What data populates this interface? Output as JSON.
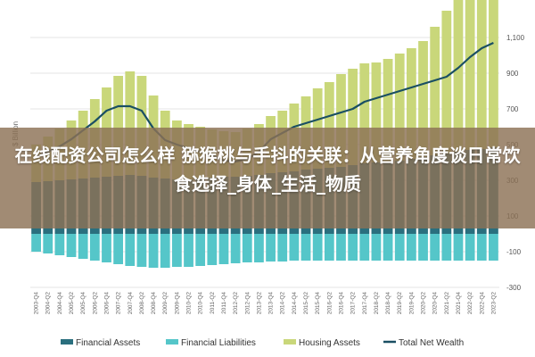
{
  "overlay": {
    "title": "在线配资公司怎么样 猕猴桃与手抖的关联：从营养角度谈日常饮食选择_身体_生活_物质"
  },
  "chart_data": {
    "type": "bar",
    "ylabel": "$ Billion",
    "ylim": [
      -300,
      1200
    ],
    "yticks": [
      -300,
      -100,
      100,
      300,
      500,
      700,
      900,
      1100
    ],
    "ytick_labels": [
      "-300",
      "-100",
      "100",
      "300",
      "500",
      "700",
      "900",
      "1,100"
    ],
    "grid": true,
    "legend_position": "bottom",
    "x_labels": [
      "2003-Q4",
      "2004-Q2",
      "2004-Q4",
      "2005-Q2",
      "2005-Q4",
      "2006-Q2",
      "2006-Q4",
      "2007-Q2",
      "2007-Q4",
      "2008-Q2",
      "2008-Q4",
      "2009-Q2",
      "2009-Q4",
      "2010-Q2",
      "2010-Q4",
      "2011-Q2",
      "2011-Q4",
      "2012-Q2",
      "2012-Q4",
      "2013-Q2",
      "2013-Q4",
      "2014-Q2",
      "2014-Q4",
      "2015-Q2",
      "2015-Q4",
      "2016-Q2",
      "2016-Q4",
      "2017-Q2",
      "2017-Q4",
      "2018-Q2",
      "2018-Q4",
      "2019-Q2",
      "2019-Q4",
      "2020-Q2",
      "2020-Q4",
      "2021-Q2",
      "2021-Q4",
      "2022-Q2",
      "2022-Q4",
      "2023-Q2"
    ],
    "series": [
      {
        "name": "Financial Assets",
        "color": "#2a6f7e",
        "values": [
          290,
          295,
          300,
          305,
          310,
          315,
          320,
          325,
          330,
          325,
          315,
          310,
          305,
          305,
          310,
          315,
          320,
          320,
          325,
          330,
          340,
          345,
          350,
          360,
          365,
          370,
          375,
          385,
          395,
          400,
          405,
          410,
          420,
          430,
          440,
          450,
          460,
          470,
          475,
          485
        ]
      },
      {
        "name": "Financial Liabilities",
        "color": "#55c6c9",
        "values": [
          -100,
          -110,
          -120,
          -130,
          -140,
          -150,
          -160,
          -170,
          -180,
          -185,
          -190,
          -190,
          -185,
          -185,
          -180,
          -175,
          -170,
          -165,
          -160,
          -160,
          -155,
          -155,
          -150,
          -150,
          -150,
          -150,
          -150,
          -150,
          -150,
          -150,
          -150,
          -150,
          -150,
          -150,
          -150,
          -150,
          -150,
          -150,
          -150,
          -150
        ]
      },
      {
        "name": "Housing Assets",
        "color": "#c9d77a",
        "values": [
          210,
          250,
          290,
          330,
          380,
          440,
          500,
          560,
          580,
          560,
          460,
          380,
          330,
          310,
          290,
          270,
          255,
          250,
          265,
          285,
          320,
          345,
          380,
          410,
          450,
          480,
          520,
          540,
          560,
          560,
          575,
          600,
          620,
          650,
          720,
          800,
          880,
          920,
          950,
          970
        ]
      },
      {
        "name": "Total Net Wealth",
        "color": "#1a4f63",
        "type": "line",
        "values": [
          430,
          460,
          490,
          530,
          580,
          630,
          690,
          715,
          715,
          690,
          590,
          525,
          500,
          480,
          460,
          440,
          410,
          405,
          420,
          460,
          530,
          565,
          600,
          620,
          640,
          660,
          680,
          700,
          740,
          760,
          780,
          800,
          820,
          840,
          860,
          880,
          930,
          990,
          1040,
          1070
        ]
      }
    ]
  }
}
